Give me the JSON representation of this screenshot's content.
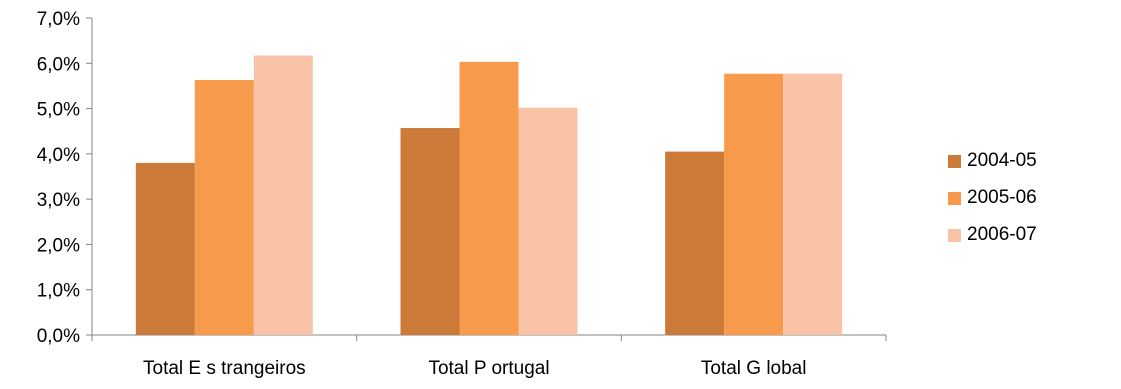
{
  "chart_data": {
    "type": "bar",
    "categories": [
      "Total E s trangeiros",
      "Total P ortugal",
      "Total G lobal"
    ],
    "series": [
      {
        "name": "2004-05",
        "values": [
          3.8,
          4.57,
          4.05
        ],
        "color": "#CC7A3A"
      },
      {
        "name": "2005-06",
        "values": [
          5.63,
          6.03,
          5.77
        ],
        "color": "#F79A4B"
      },
      {
        "name": "2006-07",
        "values": [
          6.17,
          5.02,
          5.77
        ],
        "color": "#F9C3A7"
      }
    ],
    "yticks": [
      "0,0%",
      "1,0%",
      "2,0%",
      "3,0%",
      "4,0%",
      "5,0%",
      "6,0%",
      "7,0%"
    ],
    "ylim": [
      0,
      7
    ],
    "ylabel": "",
    "xlabel": "",
    "title": "",
    "grid": false,
    "legend_position": "right"
  }
}
